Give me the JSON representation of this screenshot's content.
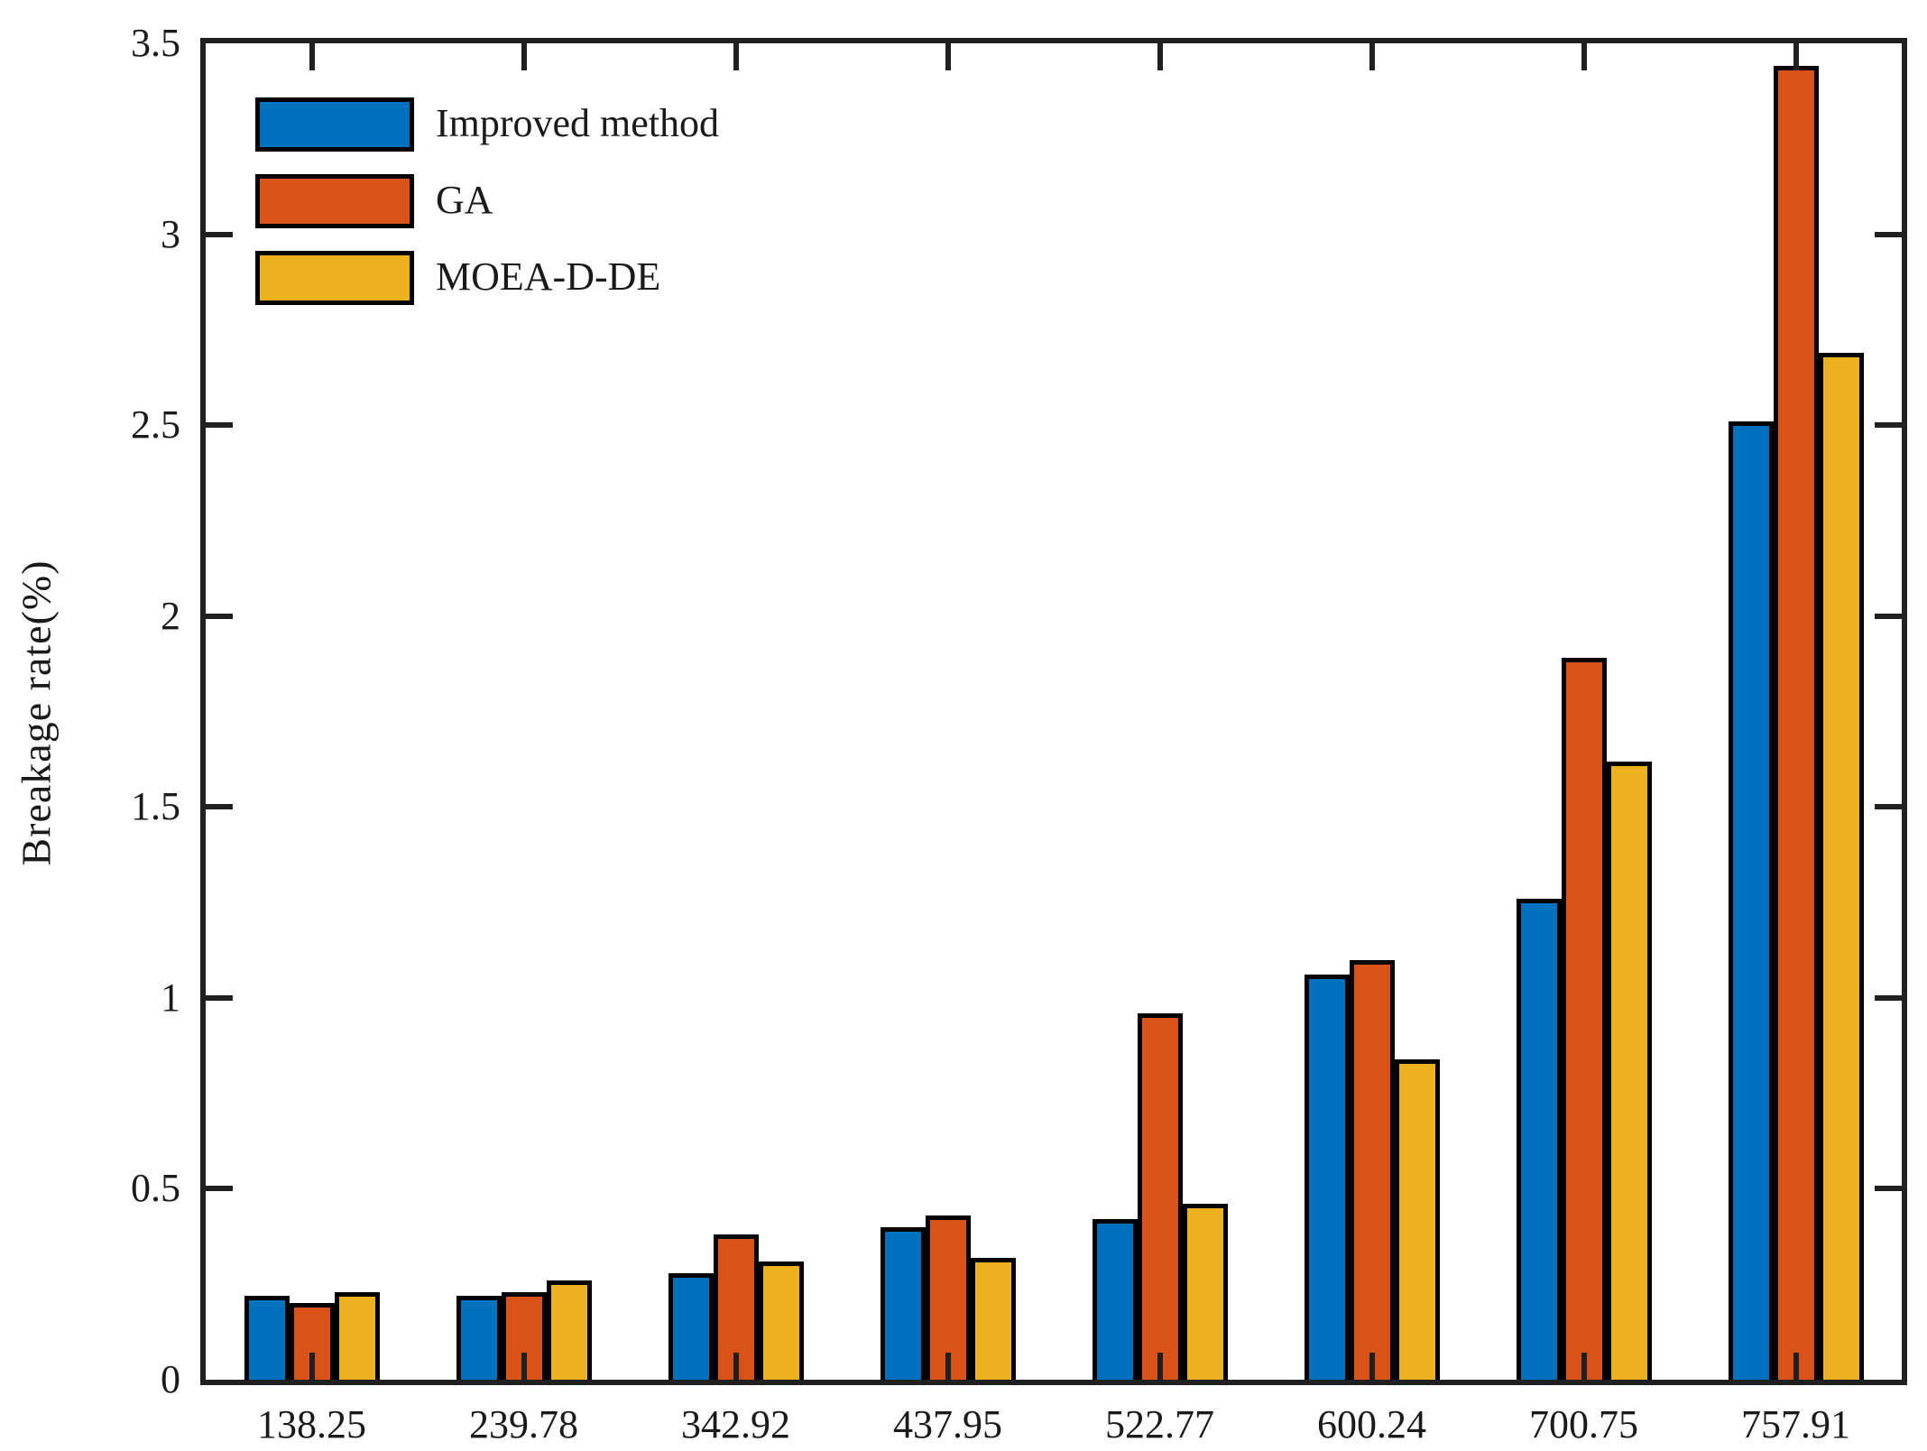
{
  "figure": {
    "background": "#ffffff",
    "axis_color": "#202020",
    "text_color": "#1a1a1a"
  },
  "chart_data": {
    "type": "bar",
    "title": "",
    "xlabel": "",
    "ylabel": "Breakage rate(%)",
    "categories": [
      "138.25",
      "239.78",
      "342.92",
      "437.95",
      "522.77",
      "600.24",
      "700.75",
      "757.91"
    ],
    "series": [
      {
        "name": "Improved method",
        "color": "#0072BD",
        "values": [
          0.22,
          0.22,
          0.28,
          0.4,
          0.42,
          1.06,
          1.26,
          2.51
        ]
      },
      {
        "name": "GA",
        "color": "#D95319",
        "values": [
          0.2,
          0.23,
          0.38,
          0.43,
          0.96,
          1.1,
          1.89,
          3.44
        ]
      },
      {
        "name": "MOEA-D-DE",
        "color": "#EDB120",
        "values": [
          0.23,
          0.26,
          0.31,
          0.32,
          0.46,
          0.84,
          1.62,
          2.69
        ]
      }
    ],
    "ylim": [
      0,
      3.5
    ],
    "yticks": [
      0,
      0.5,
      1,
      1.5,
      2,
      2.5,
      3,
      3.5
    ],
    "ytick_labels": [
      "0",
      "0.5",
      "1",
      "1.5",
      "2",
      "2.5",
      "3",
      "3.5"
    ],
    "legend_position": "top-left",
    "legend_border": false,
    "grid": false,
    "bar_edge_color": "#000000"
  }
}
